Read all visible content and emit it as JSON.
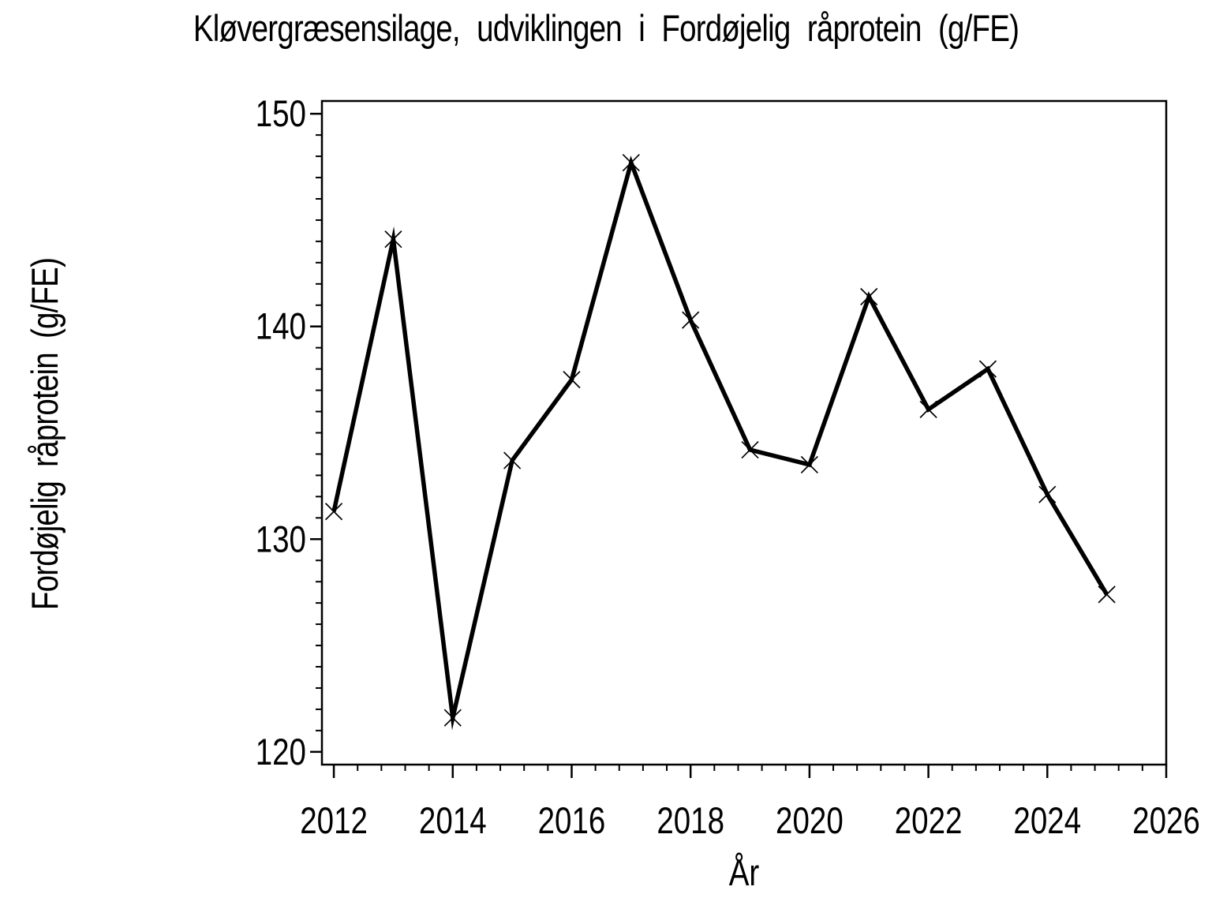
{
  "chart_data": {
    "type": "line",
    "title": "Kløvergræsensilage,  udviklingen  i  Fordøjelig  råprotein  (g/FE)",
    "xlabel": "År",
    "ylabel": "Fordøjelig  råprotein  (g/FE)",
    "x": [
      2012,
      2013,
      2014,
      2015,
      2016,
      2017,
      2018,
      2019,
      2020,
      2021,
      2022,
      2023,
      2024,
      2025
    ],
    "values": [
      131.3,
      144.1,
      121.6,
      133.7,
      137.5,
      147.7,
      140.3,
      134.2,
      133.5,
      141.4,
      136.1,
      138.0,
      132.1,
      127.4
    ],
    "xlim": [
      2011.8,
      2026.0
    ],
    "ylim": [
      119.4,
      150.6
    ],
    "x_major_ticks": [
      2012,
      2014,
      2016,
      2018,
      2020,
      2022,
      2024,
      2026
    ],
    "x_minor_step": 0.4,
    "y_major_ticks": [
      120,
      130,
      140,
      150
    ],
    "y_minor_step": 1,
    "grid": false,
    "legend": null,
    "marker": "x",
    "line_color": "#000000",
    "axis_color": "#000000",
    "background_color": "#ffffff"
  }
}
